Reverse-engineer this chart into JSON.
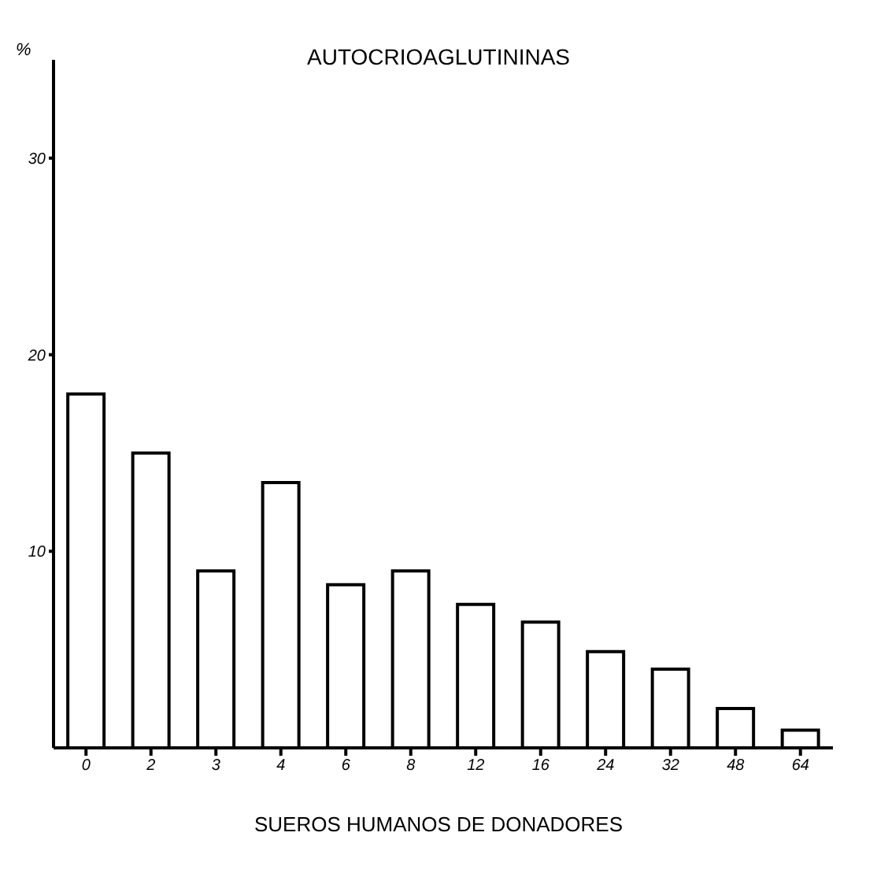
{
  "chart_data": {
    "type": "bar",
    "title": "AUTOCRIOAGLUTININAS",
    "xlabel": "SUEROS HUMANOS DE DONADORES",
    "ylabel": "%",
    "categories": [
      "0",
      "2",
      "3",
      "4",
      "6",
      "8",
      "12",
      "16",
      "24",
      "32",
      "48",
      "64"
    ],
    "values": [
      18,
      15,
      9,
      13.5,
      8.3,
      9,
      7.3,
      6.4,
      4.9,
      4,
      2,
      0.9
    ],
    "color": "#ffffff",
    "ylim": [
      0,
      35
    ],
    "yticks": [
      10,
      20,
      30
    ],
    "grid": false,
    "legend": false
  }
}
